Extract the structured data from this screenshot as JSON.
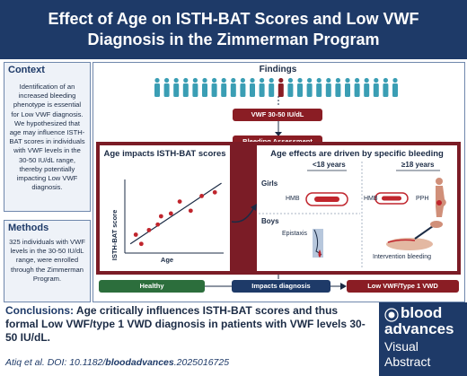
{
  "header": {
    "title": "Effect of Age on ISTH-BAT Scores and Low VWF Diagnosis in the Zimmerman Program"
  },
  "context": {
    "heading": "Context",
    "body": "Identification of an increased bleeding phenotype is essential for Low VWF diagnosis. We hypothesized that age may influence ISTH-BAT scores in individuals with VWF levels in the 30-50 IU/dL range, thereby potentially impacting Low VWF diagnosis."
  },
  "methods": {
    "heading": "Methods",
    "body": "325 individuals with VWF levels in the 30-50 IU/dL range, were enrolled through the Zimmerman Program."
  },
  "findings": {
    "title": "Findings",
    "vwf_box": "VWF 30-50 IU/dL",
    "bleeding_box": "Bleeding Assessment",
    "chart_title": "Age impacts ISTH-BAT scores",
    "age_title": "Age effects are driven by specific bleeding",
    "under18": "<18 years",
    "over18": "≥18 years",
    "girls": "Girls",
    "boys": "Boys",
    "hmb": "HMB",
    "hmb2": "HMB",
    "pph": "PPH",
    "epistaxis": "Epistaxis",
    "intervention": "Intervention bleeding",
    "healthy": "Healthy",
    "impacts": "Impacts diagnosis",
    "low_vwf": "Low VWF/Type 1 VWD"
  },
  "chart_data": {
    "type": "scatter",
    "title": "Age impacts ISTH-BAT scores",
    "xlabel": "Age",
    "ylabel": "ISTH-BAT score",
    "x": [
      1.0,
      1.5,
      2.2,
      3.0,
      3.3,
      4.2,
      5.0,
      6.0,
      7.0,
      8.2
    ],
    "y": [
      2.0,
      1.0,
      2.5,
      3.1,
      4.0,
      4.3,
      5.6,
      4.6,
      6.2,
      6.6
    ],
    "trend": [
      [
        0.5,
        1.0
      ],
      [
        8.8,
        7.6
      ]
    ]
  },
  "conclusions": {
    "heading": "Conclusions:",
    "body": "Age critically influences ISTH-BAT scores and thus formal Low VWF/type 1 VWD diagnosis in patients with VWF levels 30-50 IU/dL."
  },
  "citation": {
    "authors": "Atiq et al. DOI: 10.1182/",
    "journal": "bloodadvances",
    "doi_tail": ".2025016725"
  },
  "logo": {
    "line1": "blood",
    "line2": "advances",
    "line3": "Visual",
    "line4": "Abstract"
  },
  "colors": {
    "navy": "#1e3a68",
    "maroon": "#8a1d24",
    "green": "#2c6e3c",
    "teal": "#3a9eb4",
    "red": "#c0252d"
  }
}
